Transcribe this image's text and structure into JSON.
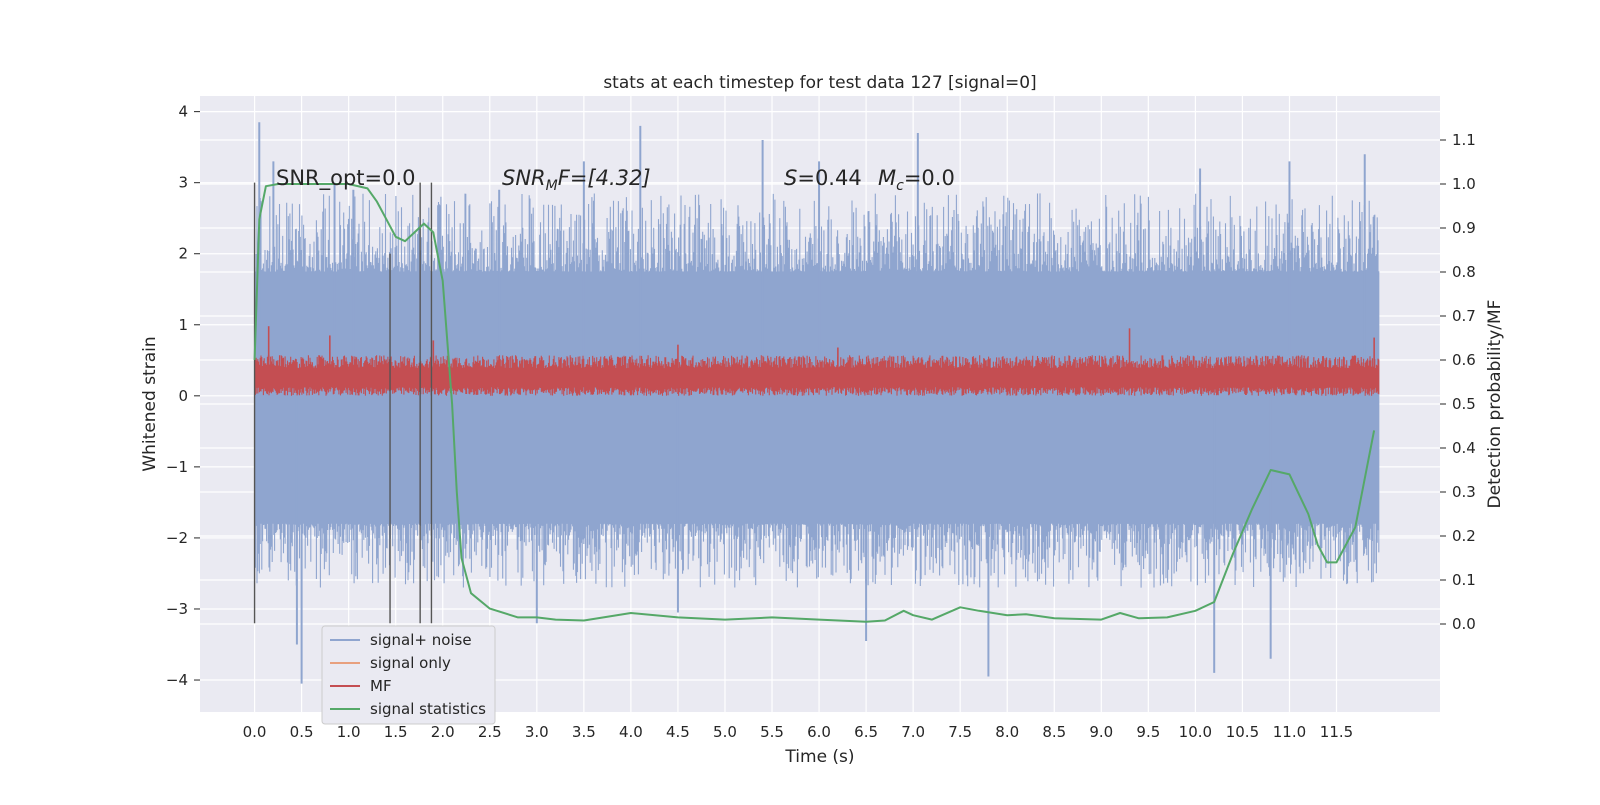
{
  "chart_data": {
    "type": "line",
    "title": "stats at each timestep for test data 127 [signal=0]",
    "xlabel": "Time (s)",
    "ylabel_left": "Whitened strain",
    "ylabel_right": "Detection probability/MF",
    "xlim": [
      -0.58,
      12.6
    ],
    "ylim_left": [
      -4.45,
      4.22
    ],
    "ylim_right": [
      -0.2,
      1.2
    ],
    "x_ticks": [
      "0.0",
      "0.5",
      "1.0",
      "1.5",
      "2.0",
      "2.5",
      "3.0",
      "3.5",
      "4.0",
      "4.5",
      "5.0",
      "5.5",
      "6.0",
      "6.5",
      "7.0",
      "7.5",
      "8.0",
      "8.5",
      "9.0",
      "9.5",
      "10.0",
      "10.5",
      "11.0",
      "11.5"
    ],
    "y_ticks_left": [
      "−4",
      "−3",
      "−2",
      "−1",
      "0",
      "1",
      "2",
      "3",
      "4"
    ],
    "y_ticks_right": [
      "0.0",
      "0.1",
      "0.2",
      "0.3",
      "0.4",
      "0.5",
      "0.6",
      "0.7",
      "0.8",
      "0.9",
      "1.0",
      "1.1"
    ],
    "grid": true,
    "legend_position": "lower-left",
    "annotations": {
      "snr_opt": "SNR_opt=0.0",
      "snr_mf_prefix": "SNR",
      "snr_mf_sub": "M",
      "snr_mf_suffix": "F=[4.32]",
      "s_label": "S",
      "s_value": "=0.44",
      "mc_label": "M",
      "mc_sub": "c",
      "mc_value": "=0.0"
    },
    "vertical_markers": [
      0.0,
      1.44,
      1.76,
      1.88
    ],
    "series": [
      {
        "name": "signal+ noise",
        "color": "#8fa5cf",
        "axis": "left",
        "x_range": [
          0.0,
          11.95
        ],
        "core_band": [
          -1.8,
          1.75
        ],
        "peaks": [
          {
            "x": 0.05,
            "y": 3.85
          },
          {
            "x": 0.2,
            "y": 3.3
          },
          {
            "x": 0.85,
            "y": 3.0
          },
          {
            "x": 1.05,
            "y": 2.9
          },
          {
            "x": 2.6,
            "y": 2.9
          },
          {
            "x": 3.5,
            "y": 3.3
          },
          {
            "x": 4.1,
            "y": 3.8
          },
          {
            "x": 5.4,
            "y": 3.6
          },
          {
            "x": 6.0,
            "y": 3.3
          },
          {
            "x": 7.05,
            "y": 3.7
          },
          {
            "x": 10.05,
            "y": 3.2
          },
          {
            "x": 11.0,
            "y": 3.3
          },
          {
            "x": 11.8,
            "y": 3.4
          }
        ],
        "troughs": [
          {
            "x": 0.45,
            "y": -3.5
          },
          {
            "x": 0.5,
            "y": -4.05
          },
          {
            "x": 3.0,
            "y": -3.2
          },
          {
            "x": 4.5,
            "y": -3.05
          },
          {
            "x": 6.5,
            "y": -3.45
          },
          {
            "x": 7.8,
            "y": -3.95
          },
          {
            "x": 10.2,
            "y": -3.9
          },
          {
            "x": 10.8,
            "y": -3.7
          }
        ]
      },
      {
        "name": "signal only",
        "color": "#e8a07e",
        "axis": "left",
        "values": []
      },
      {
        "name": "MF",
        "color": "#c44e52",
        "axis": "left",
        "x_range": [
          0.0,
          11.95
        ],
        "band": [
          0.0,
          0.52
        ],
        "spikes": [
          {
            "x": 0.15,
            "y": 0.98
          },
          {
            "x": 0.8,
            "y": 0.85
          },
          {
            "x": 1.9,
            "y": 0.78
          },
          {
            "x": 4.5,
            "y": 0.72
          },
          {
            "x": 6.2,
            "y": 0.68
          },
          {
            "x": 9.3,
            "y": 0.95
          },
          {
            "x": 11.9,
            "y": 0.82
          }
        ]
      },
      {
        "name": "signal statistics",
        "color": "#55a868",
        "axis": "right",
        "x": [
          0.0,
          0.05,
          0.12,
          0.25,
          0.5,
          1.0,
          1.2,
          1.3,
          1.4,
          1.5,
          1.6,
          1.7,
          1.8,
          1.9,
          2.0,
          2.1,
          2.15,
          2.2,
          2.3,
          2.5,
          2.8,
          3.0,
          3.2,
          3.5,
          4.0,
          4.5,
          5.0,
          5.5,
          6.0,
          6.5,
          6.7,
          6.9,
          7.0,
          7.2,
          7.5,
          7.7,
          8.0,
          8.2,
          8.5,
          9.0,
          9.2,
          9.4,
          9.7,
          10.0,
          10.2,
          10.4,
          10.6,
          10.8,
          11.0,
          11.2,
          11.3,
          11.4,
          11.5,
          11.7,
          11.9
        ],
        "y": [
          0.6,
          0.92,
          0.995,
          1.0,
          1.0,
          1.0,
          0.99,
          0.96,
          0.92,
          0.88,
          0.87,
          0.89,
          0.91,
          0.89,
          0.78,
          0.5,
          0.3,
          0.15,
          0.07,
          0.035,
          0.015,
          0.015,
          0.01,
          0.008,
          0.025,
          0.015,
          0.01,
          0.015,
          0.01,
          0.005,
          0.008,
          0.03,
          0.02,
          0.01,
          0.038,
          0.03,
          0.02,
          0.022,
          0.013,
          0.01,
          0.025,
          0.013,
          0.015,
          0.03,
          0.05,
          0.16,
          0.26,
          0.35,
          0.34,
          0.25,
          0.18,
          0.14,
          0.14,
          0.22,
          0.44
        ]
      }
    ]
  }
}
